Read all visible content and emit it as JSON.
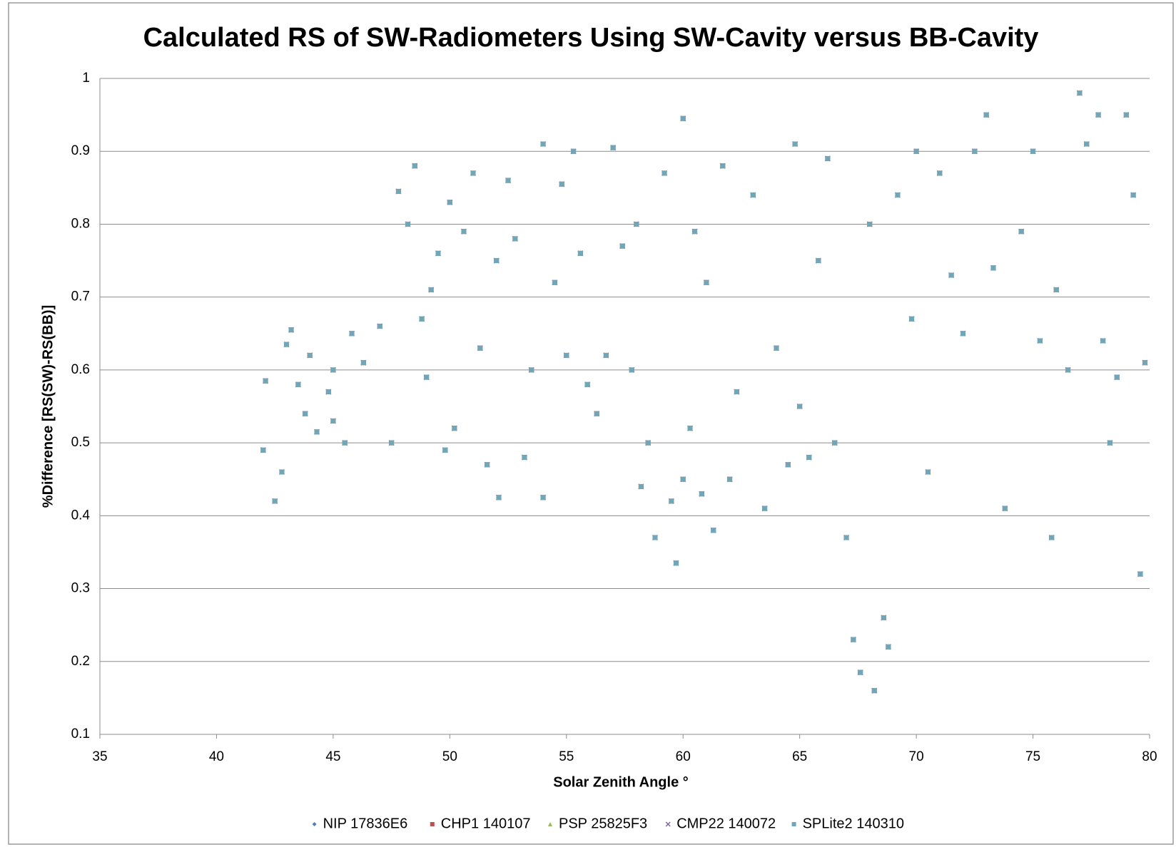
{
  "chart_data": {
    "type": "scatter",
    "title": "Calculated RS of SW-Radiometers Using SW-Cavity versus BB-Cavity",
    "x_label": "Solar Zenith Angle °",
    "y_label": "%Difference [RS(SW)-RS(BB)]",
    "xlim": [
      35,
      80
    ],
    "xticks": [
      35,
      40,
      45,
      50,
      55,
      60,
      65,
      70,
      75,
      80
    ],
    "ylim": [
      0.1,
      1
    ],
    "yticks": [
      0.1,
      0.2,
      0.3,
      0.4,
      0.5,
      0.6,
      0.7,
      0.8,
      0.9,
      1
    ],
    "grid": true,
    "legend": "bottom",
    "x": [
      42,
      42.1,
      42.5,
      42.8,
      43,
      43.2,
      43.5,
      43.8,
      44,
      44.3,
      44.8,
      45,
      45,
      45.5,
      45.8,
      46.3,
      47,
      47.5,
      47.8,
      48.2,
      48.5,
      48.8,
      49,
      49.2,
      49.5,
      49.8,
      50,
      50.2,
      50.6,
      51,
      51.3,
      51.6,
      52,
      52.1,
      52.5,
      52.8,
      53.2,
      53.5,
      54,
      54,
      54.5,
      54.8,
      55,
      55.3,
      55.6,
      55.9,
      56.3,
      56.7,
      57,
      57.4,
      57.8,
      58,
      58.2,
      58.5,
      58.8,
      59.2,
      59.5,
      59.7,
      60,
      60,
      60.3,
      60.5,
      60.8,
      61,
      61.3,
      61.7,
      62,
      62.3,
      63,
      63.5,
      64,
      64.5,
      64.8,
      65,
      65.4,
      65.8,
      66.2,
      66.5,
      67,
      67.3,
      67.6,
      68,
      68.2,
      68.6,
      68.8,
      69.2,
      69.8,
      70,
      70.5,
      71,
      71.5,
      72,
      72.5,
      73,
      73.3,
      73.8,
      74.5,
      75,
      75.3,
      75.8,
      76,
      76.5,
      77,
      77.3,
      77.8,
      78,
      78.3,
      78.6,
      79,
      79.3,
      79.6,
      79.8
    ],
    "series": [
      {
        "name": "NIP 17836E6",
        "color": "#4f81bd",
        "marker": "diamond",
        "values": [
          0.49,
          0.585,
          0.42,
          0.46,
          0.635,
          0.655,
          0.58,
          0.54,
          0.62,
          0.515,
          0.57,
          0.6,
          0.53,
          0.5,
          0.65,
          0.61,
          0.66,
          0.5,
          0.845,
          0.8,
          0.88,
          0.67,
          0.59,
          0.71,
          0.76,
          0.49,
          0.83,
          0.52,
          0.79,
          0.87,
          0.63,
          0.47,
          0.75,
          0.425,
          0.86,
          0.78,
          0.48,
          0.6,
          0.91,
          0.425,
          0.72,
          0.855,
          0.62,
          0.9,
          0.76,
          0.58,
          0.54,
          0.62,
          0.905,
          0.77,
          0.6,
          0.8,
          0.44,
          0.5,
          0.37,
          0.87,
          0.42,
          0.335,
          0.945,
          0.45,
          0.52,
          0.79,
          0.43,
          0.72,
          0.38,
          0.88,
          0.45,
          0.57,
          0.84,
          0.41,
          0.63,
          0.47,
          0.91,
          0.55,
          0.48,
          0.75,
          0.89,
          0.5,
          0.37,
          0.23,
          0.185,
          0.8,
          0.16,
          0.26,
          0.22,
          0.84,
          0.67,
          0.9,
          0.46,
          0.87,
          0.73,
          0.65,
          0.9,
          0.95,
          0.74,
          0.41,
          0.79,
          0.9,
          0.64,
          0.37,
          0.71,
          0.6,
          0.98,
          0.91,
          0.95,
          0.64,
          0.5,
          0.59,
          0.95,
          0.84,
          0.32,
          0.61
        ]
      },
      {
        "name": "CHP1 140107",
        "color": "#c0504d",
        "marker": "square",
        "values": [
          0.49,
          0.585,
          0.42,
          0.46,
          0.635,
          0.655,
          0.58,
          0.54,
          0.62,
          0.515,
          0.57,
          0.6,
          0.53,
          0.5,
          0.65,
          0.61,
          0.66,
          0.5,
          0.845,
          0.8,
          0.88,
          0.67,
          0.59,
          0.71,
          0.76,
          0.49,
          0.83,
          0.52,
          0.79,
          0.87,
          0.63,
          0.47,
          0.75,
          0.425,
          0.86,
          0.78,
          0.48,
          0.6,
          0.91,
          0.425,
          0.72,
          0.855,
          0.62,
          0.9,
          0.76,
          0.58,
          0.54,
          0.62,
          0.905,
          0.77,
          0.6,
          0.8,
          0.44,
          0.5,
          0.37,
          0.87,
          0.42,
          0.335,
          0.945,
          0.45,
          0.52,
          0.79,
          0.43,
          0.72,
          0.38,
          0.88,
          0.45,
          0.57,
          0.84,
          0.41,
          0.63,
          0.47,
          0.91,
          0.55,
          0.48,
          0.75,
          0.89,
          0.5,
          0.37,
          0.23,
          0.185,
          0.8,
          0.16,
          0.26,
          0.22,
          0.84,
          0.67,
          0.9,
          0.46,
          0.87,
          0.73,
          0.65,
          0.9,
          0.95,
          0.74,
          0.41,
          0.79,
          0.9,
          0.64,
          0.37,
          0.71,
          0.6,
          0.98,
          0.91,
          0.95,
          0.64,
          0.5,
          0.59,
          0.95,
          0.84,
          0.32,
          0.61
        ]
      },
      {
        "name": "PSP 25825F3",
        "color": "#9bbb59",
        "marker": "triangle",
        "values": [
          0.49,
          0.585,
          0.42,
          0.46,
          0.635,
          0.655,
          0.58,
          0.54,
          0.62,
          0.515,
          0.57,
          0.6,
          0.53,
          0.5,
          0.65,
          0.61,
          0.66,
          0.5,
          0.845,
          0.8,
          0.88,
          0.67,
          0.59,
          0.71,
          0.76,
          0.49,
          0.83,
          0.52,
          0.79,
          0.87,
          0.63,
          0.47,
          0.75,
          0.425,
          0.86,
          0.78,
          0.48,
          0.6,
          0.91,
          0.425,
          0.72,
          0.855,
          0.62,
          0.9,
          0.76,
          0.58,
          0.54,
          0.62,
          0.905,
          0.77,
          0.6,
          0.8,
          0.44,
          0.5,
          0.37,
          0.87,
          0.42,
          0.335,
          0.945,
          0.45,
          0.52,
          0.79,
          0.43,
          0.72,
          0.38,
          0.88,
          0.45,
          0.57,
          0.84,
          0.41,
          0.63,
          0.47,
          0.91,
          0.55,
          0.48,
          0.75,
          0.89,
          0.5,
          0.37,
          0.23,
          0.185,
          0.8,
          0.16,
          0.26,
          0.22,
          0.84,
          0.67,
          0.9,
          0.46,
          0.87,
          0.73,
          0.65,
          0.9,
          0.95,
          0.74,
          0.41,
          0.79,
          0.9,
          0.64,
          0.37,
          0.71,
          0.6,
          0.98,
          0.91,
          0.95,
          0.64,
          0.5,
          0.59,
          0.95,
          0.84,
          0.32,
          0.61
        ]
      },
      {
        "name": "CMP22 140072",
        "color": "#8064a2",
        "marker": "cross",
        "values": [
          0.49,
          0.585,
          0.42,
          0.46,
          0.635,
          0.655,
          0.58,
          0.54,
          0.62,
          0.515,
          0.57,
          0.6,
          0.53,
          0.5,
          0.65,
          0.61,
          0.66,
          0.5,
          0.845,
          0.8,
          0.88,
          0.67,
          0.59,
          0.71,
          0.76,
          0.49,
          0.83,
          0.52,
          0.79,
          0.87,
          0.63,
          0.47,
          0.75,
          0.425,
          0.86,
          0.78,
          0.48,
          0.6,
          0.91,
          0.425,
          0.72,
          0.855,
          0.62,
          0.9,
          0.76,
          0.58,
          0.54,
          0.62,
          0.905,
          0.77,
          0.6,
          0.8,
          0.44,
          0.5,
          0.37,
          0.87,
          0.42,
          0.335,
          0.945,
          0.45,
          0.52,
          0.79,
          0.43,
          0.72,
          0.38,
          0.88,
          0.45,
          0.57,
          0.84,
          0.41,
          0.63,
          0.47,
          0.91,
          0.55,
          0.48,
          0.75,
          0.89,
          0.5,
          0.37,
          0.23,
          0.185,
          0.8,
          0.16,
          0.26,
          0.22,
          0.84,
          0.67,
          0.9,
          0.46,
          0.87,
          0.73,
          0.65,
          0.9,
          0.95,
          0.74,
          0.41,
          0.79,
          0.9,
          0.64,
          0.37,
          0.71,
          0.6,
          0.98,
          0.91,
          0.95,
          0.64,
          0.5,
          0.59,
          0.95,
          0.84,
          0.32,
          0.61
        ]
      },
      {
        "name": "SPLite2 140310",
        "color": "#6fa6b8",
        "marker": "square",
        "values": [
          0.49,
          0.585,
          0.42,
          0.46,
          0.635,
          0.655,
          0.58,
          0.54,
          0.62,
          0.515,
          0.57,
          0.6,
          0.53,
          0.5,
          0.65,
          0.61,
          0.66,
          0.5,
          0.845,
          0.8,
          0.88,
          0.67,
          0.59,
          0.71,
          0.76,
          0.49,
          0.83,
          0.52,
          0.79,
          0.87,
          0.63,
          0.47,
          0.75,
          0.425,
          0.86,
          0.78,
          0.48,
          0.6,
          0.91,
          0.425,
          0.72,
          0.855,
          0.62,
          0.9,
          0.76,
          0.58,
          0.54,
          0.62,
          0.905,
          0.77,
          0.6,
          0.8,
          0.44,
          0.5,
          0.37,
          0.87,
          0.42,
          0.335,
          0.945,
          0.45,
          0.52,
          0.79,
          0.43,
          0.72,
          0.38,
          0.88,
          0.45,
          0.57,
          0.84,
          0.41,
          0.63,
          0.47,
          0.91,
          0.55,
          0.48,
          0.75,
          0.89,
          0.5,
          0.37,
          0.23,
          0.185,
          0.8,
          0.16,
          0.26,
          0.22,
          0.84,
          0.67,
          0.9,
          0.46,
          0.87,
          0.73,
          0.65,
          0.9,
          0.95,
          0.74,
          0.41,
          0.79,
          0.9,
          0.64,
          0.37,
          0.71,
          0.6,
          0.98,
          0.91,
          0.95,
          0.64,
          0.5,
          0.59,
          0.95,
          0.84,
          0.32,
          0.61
        ]
      }
    ]
  }
}
